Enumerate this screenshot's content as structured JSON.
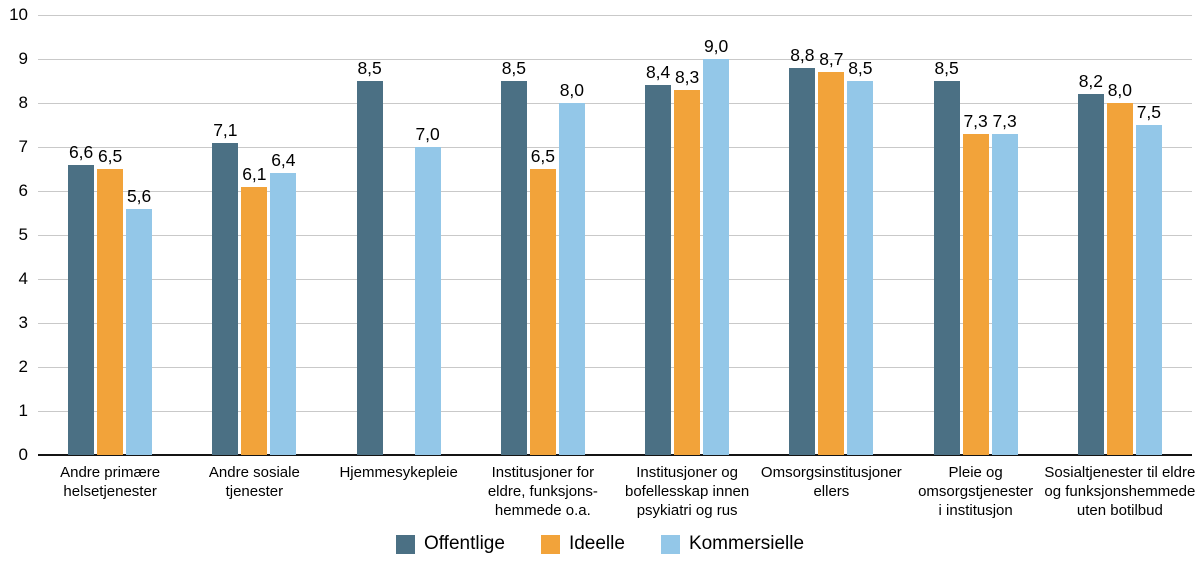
{
  "chart_data": {
    "type": "bar",
    "categories": [
      [
        "Andre primære",
        "helsetjenester"
      ],
      [
        "Andre sosiale",
        "tjenester"
      ],
      [
        "Hjemmesykepleie"
      ],
      [
        "Institusjoner for",
        "eldre, funksjons-",
        "hemmede o.a."
      ],
      [
        "Institusjoner og",
        "bofellesskap innen",
        "psykiatri og rus"
      ],
      [
        "Omsorgsinstitusjoner",
        "ellers"
      ],
      [
        "Pleie og",
        "omsorgstjenester",
        "i institusjon"
      ],
      [
        "Sosialtjenester til eldre",
        "og funksjonshemmede",
        "uten botilbud"
      ]
    ],
    "series": [
      {
        "name": "Offentlige",
        "color": "#4b7084",
        "values": [
          6.6,
          7.1,
          8.5,
          8.5,
          8.4,
          8.8,
          8.5,
          8.2
        ]
      },
      {
        "name": "Ideelle",
        "color": "#f2a33a",
        "values": [
          6.5,
          6.1,
          null,
          6.5,
          8.3,
          8.7,
          7.3,
          8.0
        ]
      },
      {
        "name": "Kommersielle",
        "color": "#93c7e8",
        "values": [
          5.6,
          6.4,
          7.0,
          8.0,
          9.0,
          8.5,
          7.3,
          7.5
        ]
      }
    ],
    "ylim": [
      0,
      10
    ],
    "ytick_step": 1,
    "yticks": [
      "0",
      "1",
      "2",
      "3",
      "4",
      "5",
      "6",
      "7",
      "8",
      "9",
      "10"
    ],
    "grid": "horizontal",
    "value_labels": true,
    "decimal_separator": ",",
    "legend_position": "bottom"
  },
  "colors": {
    "gridline": "#c9c9c9",
    "axis_line": "#141414",
    "text": "#000000",
    "background": "#ffffff"
  }
}
